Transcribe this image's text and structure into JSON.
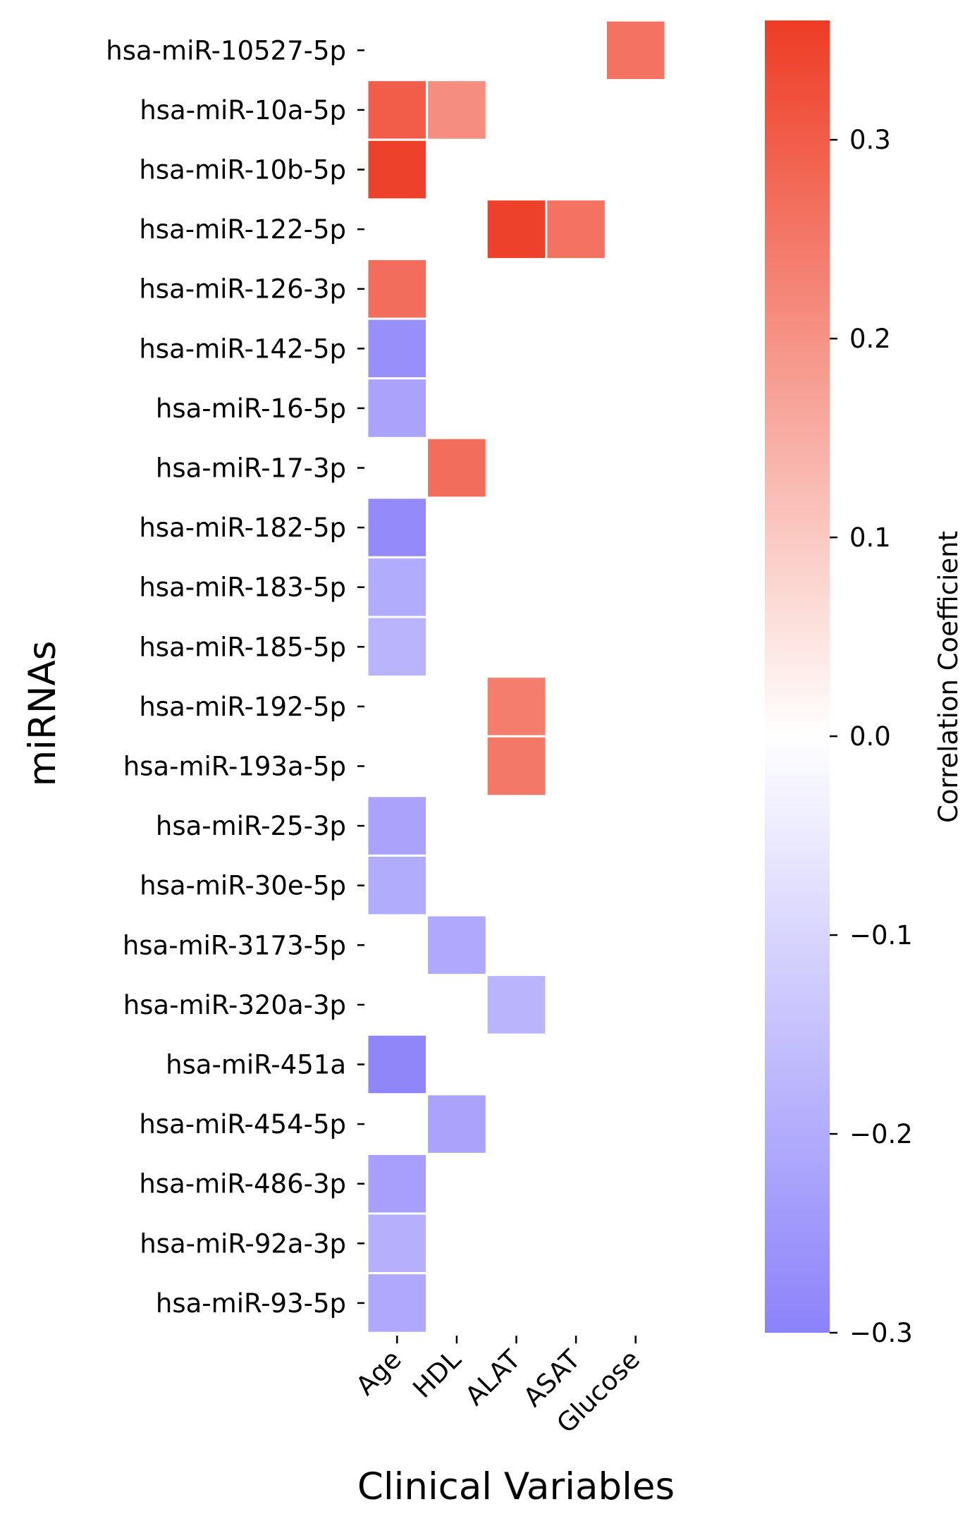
{
  "chart_data": {
    "type": "heatmap",
    "xlabel": "Clinical Variables",
    "ylabel": "miRNAs",
    "columns": [
      "Age",
      "HDL",
      "ALAT",
      "ASAT",
      "Glucose"
    ],
    "rows": [
      "hsa-miR-10527-5p",
      "hsa-miR-10a-5p",
      "hsa-miR-10b-5p",
      "hsa-miR-122-5p",
      "hsa-miR-126-3p",
      "hsa-miR-142-5p",
      "hsa-miR-16-5p",
      "hsa-miR-17-3p",
      "hsa-miR-182-5p",
      "hsa-miR-183-5p",
      "hsa-miR-185-5p",
      "hsa-miR-192-5p",
      "hsa-miR-193a-5p",
      "hsa-miR-25-3p",
      "hsa-miR-30e-5p",
      "hsa-miR-3173-5p",
      "hsa-miR-320a-3p",
      "hsa-miR-451a",
      "hsa-miR-454-5p",
      "hsa-miR-486-3p",
      "hsa-miR-92a-3p",
      "hsa-miR-93-5p"
    ],
    "values": [
      [
        null,
        null,
        null,
        null,
        0.26
      ],
      [
        0.3,
        0.21,
        null,
        null,
        null
      ],
      [
        0.35,
        null,
        null,
        null,
        null
      ],
      [
        null,
        null,
        0.35,
        0.26,
        null
      ],
      [
        0.27,
        null,
        null,
        null,
        null
      ],
      [
        -0.27,
        null,
        null,
        null,
        null
      ],
      [
        -0.22,
        null,
        null,
        null,
        null
      ],
      [
        null,
        0.27,
        null,
        null,
        null
      ],
      [
        -0.28,
        null,
        null,
        null,
        null
      ],
      [
        -0.2,
        null,
        null,
        null,
        null
      ],
      [
        -0.18,
        null,
        null,
        null,
        null
      ],
      [
        null,
        null,
        0.24,
        null,
        null
      ],
      [
        null,
        null,
        0.25,
        null,
        null
      ],
      [
        -0.22,
        null,
        null,
        null,
        null
      ],
      [
        -0.2,
        null,
        null,
        null,
        null
      ],
      [
        null,
        -0.21,
        null,
        null,
        null
      ],
      [
        null,
        null,
        -0.18,
        null,
        null
      ],
      [
        -0.29,
        null,
        null,
        null,
        null
      ],
      [
        null,
        -0.22,
        null,
        null,
        null
      ],
      [
        -0.23,
        null,
        null,
        null,
        null
      ],
      [
        -0.19,
        null,
        null,
        null,
        null
      ],
      [
        -0.21,
        null,
        null,
        null,
        null
      ]
    ],
    "colorbar": {
      "label": "Correlation Coefficient",
      "vmin": -0.3,
      "vmax": 0.36,
      "ticks": [
        -0.3,
        -0.2,
        -0.1,
        0.0,
        0.1,
        0.2,
        0.3
      ],
      "tick_labels": [
        "−0.3",
        "−0.2",
        "−0.1",
        "0.0",
        "0.1",
        "0.2",
        "0.3"
      ]
    },
    "colors": {
      "positive": "#ee3c25",
      "neutral": "#ffffff",
      "negative": "#8c82fa",
      "cell_border": "#ffffff"
    }
  }
}
